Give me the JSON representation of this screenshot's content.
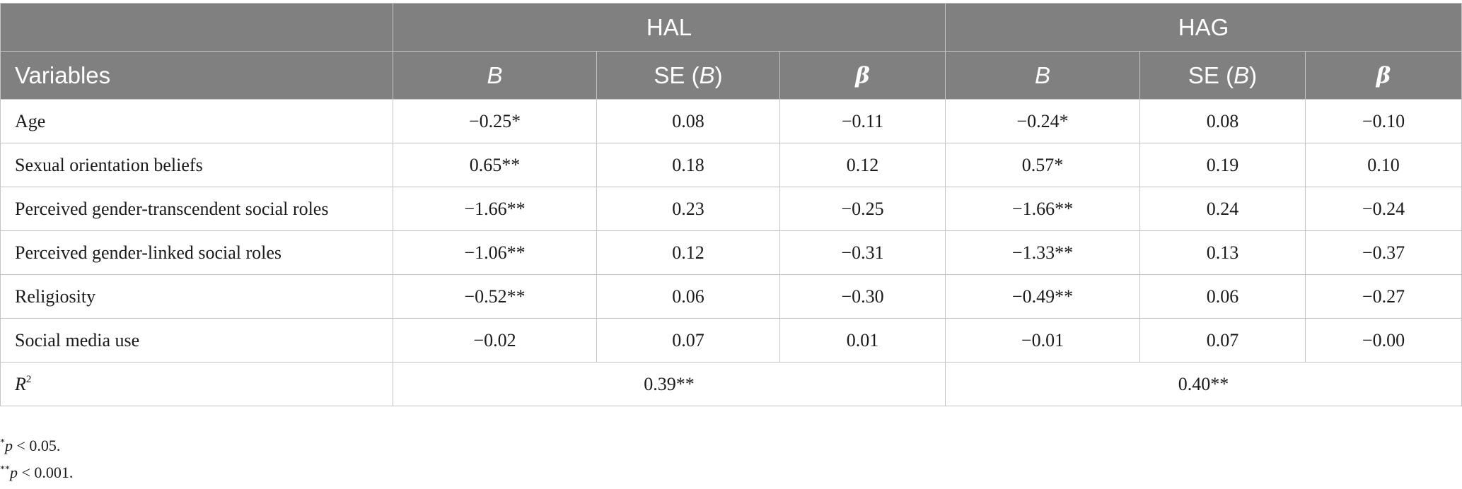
{
  "table": {
    "group_headers": {
      "hal": "HAL",
      "hag": "HAG"
    },
    "col_headers": {
      "variables": "Variables",
      "b": "B",
      "se_prefix": "SE (",
      "se_b": "B",
      "se_suffix": ")",
      "beta": "β"
    },
    "rows": [
      {
        "label": "Age",
        "hal_b": "−0.25*",
        "hal_se": "0.08",
        "hal_beta": "−0.11",
        "hag_b": "−0.24*",
        "hag_se": "0.08",
        "hag_beta": "−0.10"
      },
      {
        "label": "Sexual orientation beliefs",
        "hal_b": "0.65**",
        "hal_se": "0.18",
        "hal_beta": "0.12",
        "hag_b": "0.57*",
        "hag_se": "0.19",
        "hag_beta": "0.10"
      },
      {
        "label": "Perceived gender-transcendent social roles",
        "hal_b": "−1.66**",
        "hal_se": "0.23",
        "hal_beta": "−0.25",
        "hag_b": "−1.66**",
        "hag_se": "0.24",
        "hag_beta": "−0.24"
      },
      {
        "label": "Perceived gender-linked social roles",
        "hal_b": "−1.06**",
        "hal_se": "0.12",
        "hal_beta": "−0.31",
        "hag_b": "−1.33**",
        "hag_se": "0.13",
        "hag_beta": "−0.37"
      },
      {
        "label": "Religiosity",
        "hal_b": "−0.52**",
        "hal_se": "0.06",
        "hal_beta": "−0.30",
        "hag_b": "−0.49**",
        "hag_se": "0.06",
        "hag_beta": "−0.27"
      },
      {
        "label": "Social media use",
        "hal_b": "−0.02",
        "hal_se": "0.07",
        "hal_beta": "0.01",
        "hag_b": "−0.01",
        "hag_se": "0.07",
        "hag_beta": "−0.00"
      }
    ],
    "r2": {
      "label": "R",
      "sup": "2",
      "hal": "0.39**",
      "hag": "0.40**"
    }
  },
  "notes": [
    {
      "stars": "*",
      "p": "p",
      "text": " < 0.05."
    },
    {
      "stars": "**",
      "p": "p",
      "text": " < 0.001."
    }
  ]
}
